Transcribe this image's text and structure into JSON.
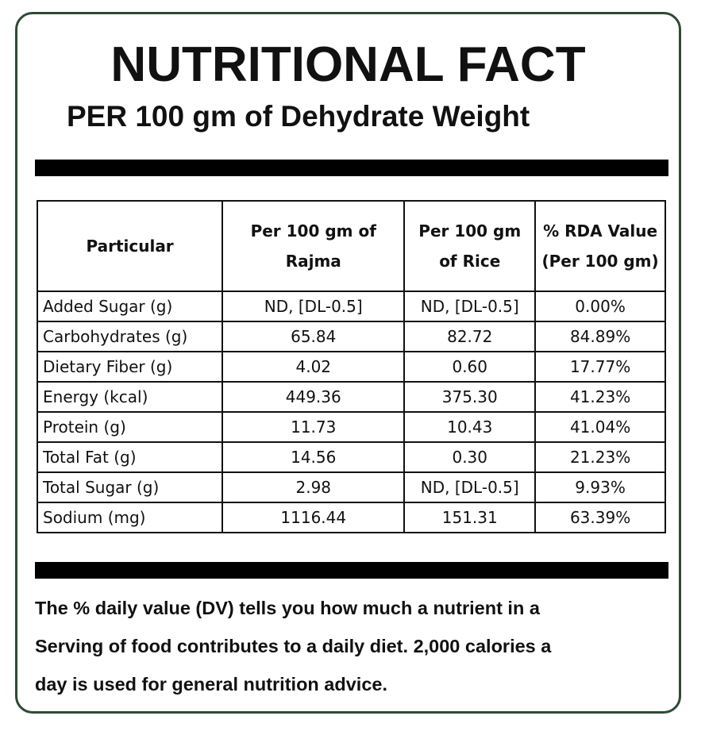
{
  "header": {
    "title": "NUTRITIONAL FACT",
    "subtitle": "PER 100 gm of Dehydrate Weight"
  },
  "table": {
    "headers": [
      [
        "Particular"
      ],
      [
        "Per 100 gm of",
        "Rajma"
      ],
      [
        "Per 100 gm",
        "of Rice"
      ],
      [
        "% RDA Value",
        "(Per 100 gm)"
      ]
    ],
    "rows": [
      [
        "Added Sugar (g)",
        "ND, [DL-0.5]",
        "ND, [DL-0.5]",
        "0.00%"
      ],
      [
        "Carbohydrates (g)",
        "65.84",
        "82.72",
        "84.89%"
      ],
      [
        "Dietary Fiber (g)",
        "4.02",
        "0.60",
        "17.77%"
      ],
      [
        "Energy (kcal)",
        "449.36",
        "375.30",
        "41.23%"
      ],
      [
        "Protein (g)",
        "11.73",
        "10.43",
        "41.04%"
      ],
      [
        "Total Fat (g)",
        "14.56",
        "0.30",
        "21.23%"
      ],
      [
        "Total Sugar (g)",
        "2.98",
        "ND, [DL-0.5]",
        "9.93%"
      ],
      [
        "Sodium (mg)",
        "1116.44",
        "151.31",
        "63.39%"
      ]
    ]
  },
  "footer": {
    "lines": [
      "The % daily value (DV) tells you how much a nutrient in a",
      "Serving of food contributes to a daily diet. 2,000 calories a",
      "day is used for general nutrition advice."
    ]
  },
  "colors": {
    "border": "#2e4a33",
    "bar": "#000000"
  }
}
